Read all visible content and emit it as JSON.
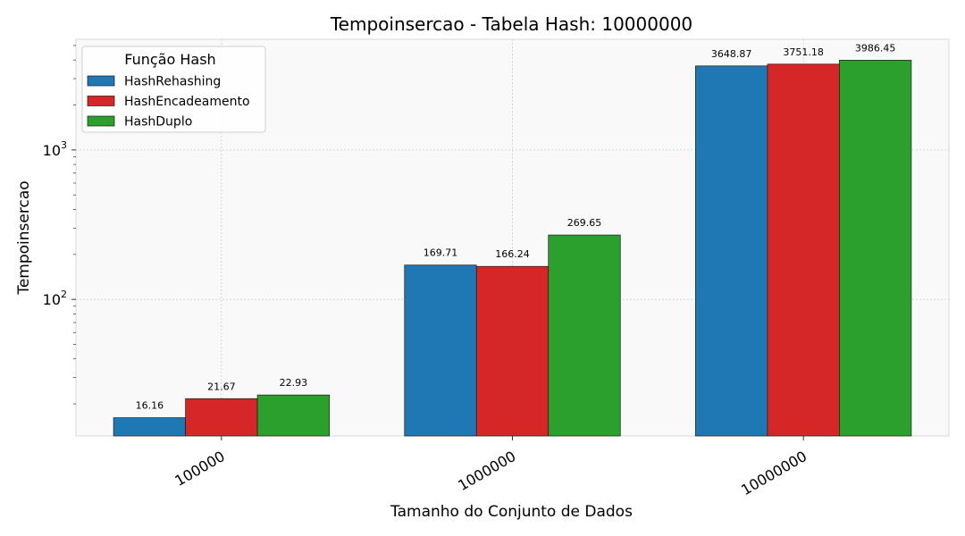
{
  "chart_data": {
    "type": "bar",
    "title": "Tempoinsercao - Tabela Hash: 10000000",
    "xlabel": "Tamanho do Conjunto de Dados",
    "ylabel": "Tempoinsercao",
    "yscale": "log",
    "ylim": [
      12.2,
      5500
    ],
    "categories": [
      "100000",
      "1000000",
      "10000000"
    ],
    "series": [
      {
        "name": "HashRehashing",
        "color": "#1f77b4",
        "values": [
          16.16,
          169.71,
          3648.87
        ],
        "labels": [
          "16.16",
          "169.71",
          "3648.87"
        ]
      },
      {
        "name": "HashEncadeamento",
        "color": "#d62728",
        "values": [
          21.67,
          166.24,
          3751.18
        ],
        "labels": [
          "21.67",
          "166.24",
          "3751.18"
        ]
      },
      {
        "name": "HashDuplo",
        "color": "#2ca02c",
        "values": [
          22.93,
          269.65,
          3986.45
        ],
        "labels": [
          "22.93",
          "269.65",
          "3986.45"
        ]
      }
    ],
    "y_ticks": [
      {
        "value": 100,
        "base": "10",
        "exp": "2"
      },
      {
        "value": 1000,
        "base": "10",
        "exp": "3"
      }
    ],
    "legend": {
      "title": "Função Hash",
      "placement": "top-left"
    },
    "grid": true,
    "background_color": "#f9f9f9"
  }
}
